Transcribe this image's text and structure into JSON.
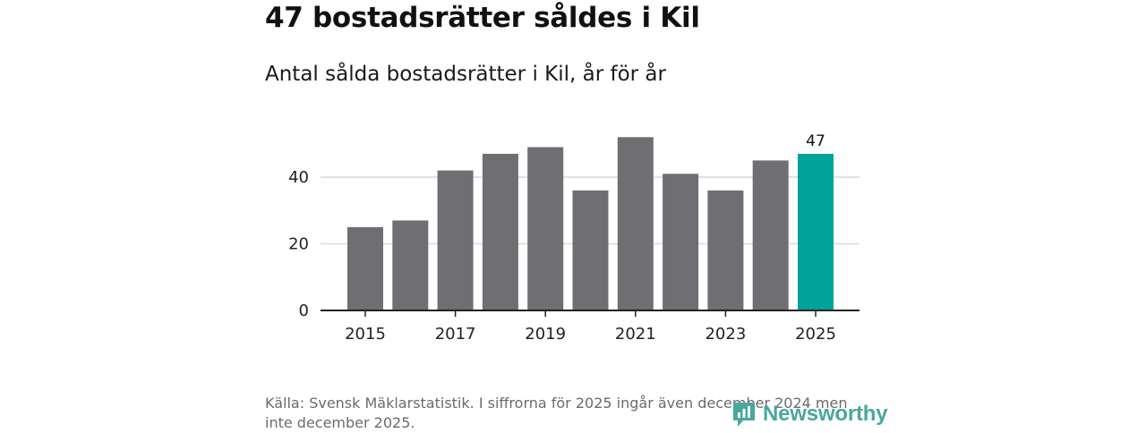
{
  "header": {
    "title": "47 bostadsrätter såldes i Kil",
    "subtitle": "Antal sålda bostadsrätter i Kil, år för år"
  },
  "chart_data": {
    "type": "bar",
    "categories": [
      "2015",
      "2016",
      "2017",
      "2018",
      "2019",
      "2020",
      "2021",
      "2022",
      "2023",
      "2024",
      "2025"
    ],
    "values": [
      25,
      27,
      42,
      47,
      49,
      36,
      52,
      41,
      36,
      45,
      47
    ],
    "x_tick_labels": [
      "2015",
      "2017",
      "2019",
      "2021",
      "2023",
      "2025"
    ],
    "y_ticks": [
      0,
      20,
      40
    ],
    "ylim": [
      0,
      55
    ],
    "highlight_index": 10,
    "highlight_label": "47",
    "colors": {
      "bar": "#6f6e73",
      "highlight": "#00a398",
      "grid": "#d9d9d9",
      "axis": "#222222"
    },
    "grid": true
  },
  "footer": {
    "source": "Källa: Svensk Mäklarstatistik. I siffrorna för 2025 ingår även december 2024 men inte december 2025.",
    "brand": "Newsworthy",
    "brand_icon": "newsworthy-logo-icon"
  }
}
